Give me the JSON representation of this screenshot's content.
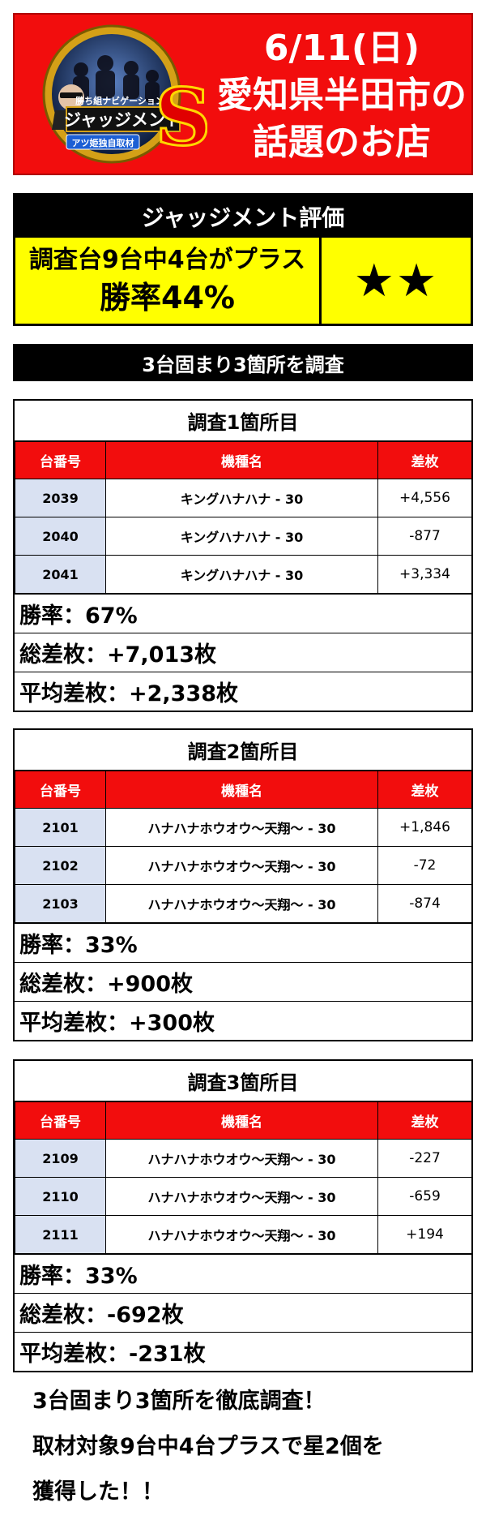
{
  "header": {
    "logo": {
      "top_text": "勝ち組ナビゲーション",
      "main_text": "ジャッジメント",
      "ribbon_text": "アツ姫独自取材",
      "badge": "S"
    },
    "lines": [
      "6/11(日)",
      "愛知県半田市の",
      "話題のお店"
    ],
    "colors": {
      "banner": "#f20d0d",
      "logo_gold": "#d4a017"
    }
  },
  "evaluation": {
    "title": "ジャッジメント評価",
    "summary_line1": "調査台9台中4台がプラス",
    "summary_line2": "勝率44%",
    "stars": "★★",
    "colors": {
      "panel": "#ffff00"
    }
  },
  "subtitle": "3台固まり3箇所を調査",
  "table_headers": {
    "number": "台番号",
    "model": "機種名",
    "diff": "差枚"
  },
  "surveys": [
    {
      "title": "調査1箇所目",
      "rows": [
        {
          "number": "2039",
          "model": "キングハナハナ - 30",
          "diff": "+4,556"
        },
        {
          "number": "2040",
          "model": "キングハナハナ - 30",
          "diff": "-877"
        },
        {
          "number": "2041",
          "model": "キングハナハナ - 30",
          "diff": "+3,334"
        }
      ],
      "win_rate": "勝率：67%",
      "total": "総差枚：+7,013枚",
      "average": "平均差枚：+2,338枚"
    },
    {
      "title": "調査2箇所目",
      "rows": [
        {
          "number": "2101",
          "model": "ハナハナホウオウ～天翔～ - 30",
          "diff": "+1,846"
        },
        {
          "number": "2102",
          "model": "ハナハナホウオウ～天翔～ - 30",
          "diff": "-72"
        },
        {
          "number": "2103",
          "model": "ハナハナホウオウ～天翔～ - 30",
          "diff": "-874"
        }
      ],
      "win_rate": "勝率：33%",
      "total": "総差枚：+900枚",
      "average": "平均差枚：+300枚"
    },
    {
      "title": "調査3箇所目",
      "rows": [
        {
          "number": "2109",
          "model": "ハナハナホウオウ～天翔～ - 30",
          "diff": "-227"
        },
        {
          "number": "2110",
          "model": "ハナハナホウオウ～天翔～ - 30",
          "diff": "-659"
        },
        {
          "number": "2111",
          "model": "ハナハナホウオウ～天翔～ - 30",
          "diff": "+194"
        }
      ],
      "win_rate": "勝率：33%",
      "total": "総差枚：-692枚",
      "average": "平均差枚：-231枚"
    }
  ],
  "conclusion": [
    "3台固まり3箇所を徹底調査！",
    "取材対象9台中4台プラスで星2個を",
    "獲得した！！"
  ]
}
